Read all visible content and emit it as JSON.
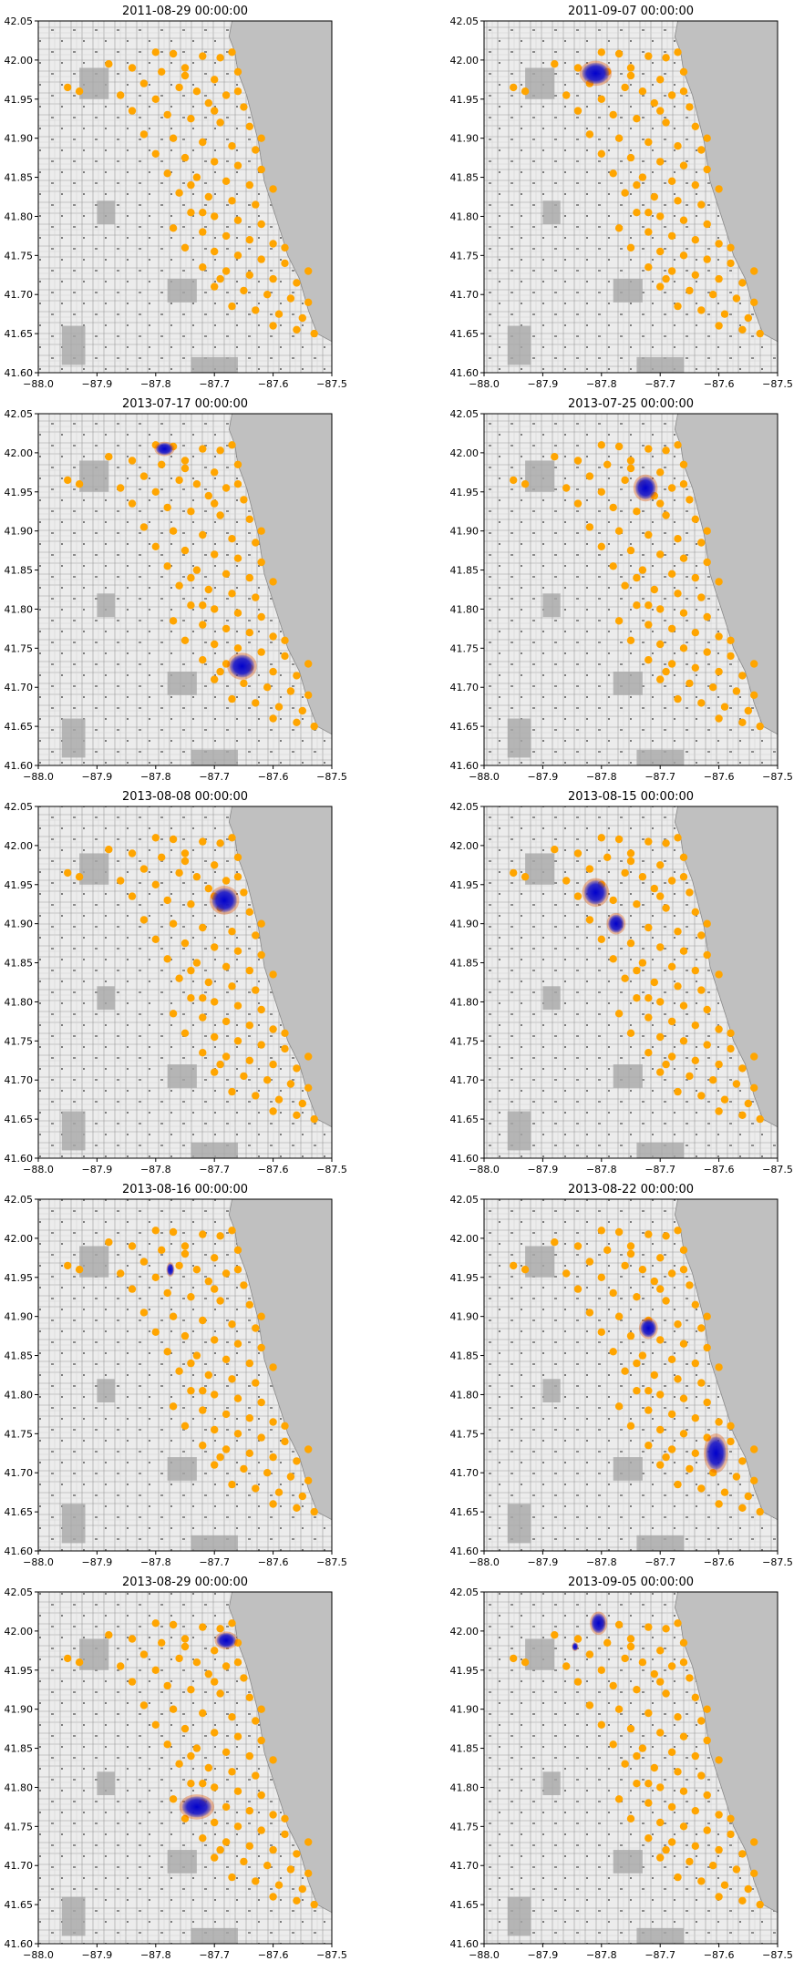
{
  "figure": {
    "background": "#ffffff"
  },
  "chart_data": [
    {
      "type": "scatter",
      "title": "2011-08-29 00:00:00",
      "xlim": [
        -88.0,
        -87.5
      ],
      "ylim": [
        41.6,
        42.05
      ],
      "xticks": [
        "−88.0",
        "−87.9",
        "−87.8",
        "−87.7",
        "−87.6",
        "−87.5"
      ],
      "yticks": [
        "41.60",
        "41.65",
        "41.70",
        "41.75",
        "41.80",
        "41.85",
        "41.90",
        "41.95",
        "42.00",
        "42.05"
      ],
      "heat_clusters": []
    },
    {
      "type": "scatter",
      "title": "2011-09-07 00:00:00",
      "xlim": [
        -88.0,
        -87.5
      ],
      "ylim": [
        41.6,
        42.05
      ],
      "xticks": [
        "−88.0",
        "−87.9",
        "−87.8",
        "−87.7",
        "−87.6",
        "−87.5"
      ],
      "yticks": [
        "41.60",
        "41.65",
        "41.70",
        "41.75",
        "41.80",
        "41.85",
        "41.90",
        "41.95",
        "42.00",
        "42.05"
      ],
      "heat_clusters": [
        {
          "x": -87.81,
          "y": 41.983,
          "rx": 0.024,
          "ry": 0.014
        }
      ]
    },
    {
      "type": "scatter",
      "title": "2013-07-17 00:00:00",
      "xlim": [
        -88.0,
        -87.5
      ],
      "ylim": [
        41.6,
        42.05
      ],
      "xticks": [
        "−88.0",
        "−87.9",
        "−87.8",
        "−87.7",
        "−87.6",
        "−87.5"
      ],
      "yticks": [
        "41.60",
        "41.65",
        "41.70",
        "41.75",
        "41.80",
        "41.85",
        "41.90",
        "41.95",
        "42.00",
        "42.05"
      ],
      "heat_clusters": [
        {
          "x": -87.785,
          "y": 42.005,
          "rx": 0.015,
          "ry": 0.008
        },
        {
          "x": -87.653,
          "y": 41.727,
          "rx": 0.022,
          "ry": 0.015
        }
      ]
    },
    {
      "type": "scatter",
      "title": "2013-07-25 00:00:00",
      "xlim": [
        -88.0,
        -87.5
      ],
      "ylim": [
        41.6,
        42.05
      ],
      "xticks": [
        "−88.0",
        "−87.9",
        "−87.8",
        "−87.7",
        "−87.6",
        "−87.5"
      ],
      "yticks": [
        "41.60",
        "41.65",
        "41.70",
        "41.75",
        "41.80",
        "41.85",
        "41.90",
        "41.95",
        "42.00",
        "42.05"
      ],
      "heat_clusters": [
        {
          "x": -87.725,
          "y": 41.955,
          "rx": 0.018,
          "ry": 0.015
        }
      ]
    },
    {
      "type": "scatter",
      "title": "2013-08-08 00:00:00",
      "xlim": [
        -88.0,
        -87.5
      ],
      "ylim": [
        41.6,
        42.05
      ],
      "xticks": [
        "−88.0",
        "−87.9",
        "−87.8",
        "−87.7",
        "−87.6",
        "−87.5"
      ],
      "yticks": [
        "41.60",
        "41.65",
        "41.70",
        "41.75",
        "41.80",
        "41.85",
        "41.90",
        "41.95",
        "42.00",
        "42.05"
      ],
      "heat_clusters": [
        {
          "x": -87.683,
          "y": 41.93,
          "rx": 0.022,
          "ry": 0.016
        }
      ]
    },
    {
      "type": "scatter",
      "title": "2013-08-15 00:00:00",
      "xlim": [
        -88.0,
        -87.5
      ],
      "ylim": [
        41.6,
        42.05
      ],
      "xticks": [
        "−88.0",
        "−87.9",
        "−87.8",
        "−87.7",
        "−87.6",
        "−87.5"
      ],
      "yticks": [
        "41.60",
        "41.65",
        "41.70",
        "41.75",
        "41.80",
        "41.85",
        "41.90",
        "41.95",
        "42.00",
        "42.05"
      ],
      "heat_clusters": [
        {
          "x": -87.81,
          "y": 41.94,
          "rx": 0.02,
          "ry": 0.016
        },
        {
          "x": -87.775,
          "y": 41.9,
          "rx": 0.014,
          "ry": 0.012
        }
      ]
    },
    {
      "type": "scatter",
      "title": "2013-08-16 00:00:00",
      "xlim": [
        -88.0,
        -87.5
      ],
      "ylim": [
        41.6,
        42.05
      ],
      "xticks": [
        "−88.0",
        "−87.9",
        "−87.8",
        "−87.7",
        "−87.6",
        "−87.5"
      ],
      "yticks": [
        "41.60",
        "41.65",
        "41.70",
        "41.75",
        "41.80",
        "41.85",
        "41.90",
        "41.95",
        "42.00",
        "42.05"
      ],
      "heat_clusters": [
        {
          "x": -87.775,
          "y": 41.96,
          "rx": 0.006,
          "ry": 0.008
        }
      ]
    },
    {
      "type": "scatter",
      "title": "2013-08-22 00:00:00",
      "xlim": [
        -88.0,
        -87.5
      ],
      "ylim": [
        41.6,
        42.05
      ],
      "xticks": [
        "−88.0",
        "−87.9",
        "−87.8",
        "−87.7",
        "−87.6",
        "−87.5"
      ],
      "yticks": [
        "41.60",
        "41.65",
        "41.70",
        "41.75",
        "41.80",
        "41.85",
        "41.90",
        "41.95",
        "42.00",
        "42.05"
      ],
      "heat_clusters": [
        {
          "x": -87.72,
          "y": 41.885,
          "rx": 0.014,
          "ry": 0.012
        },
        {
          "x": -87.605,
          "y": 41.725,
          "rx": 0.018,
          "ry": 0.022
        }
      ]
    },
    {
      "type": "scatter",
      "title": "2013-08-29 00:00:00",
      "xlim": [
        -88.0,
        -87.5
      ],
      "ylim": [
        41.6,
        42.05
      ],
      "xticks": [
        "−88.0",
        "−87.9",
        "−87.8",
        "−87.7",
        "−87.6",
        "−87.5"
      ],
      "yticks": [
        "41.60",
        "41.65",
        "41.70",
        "41.75",
        "41.80",
        "41.85",
        "41.90",
        "41.95",
        "42.00",
        "42.05"
      ],
      "heat_clusters": [
        {
          "x": -87.68,
          "y": 41.988,
          "rx": 0.017,
          "ry": 0.01
        },
        {
          "x": -87.73,
          "y": 41.775,
          "rx": 0.026,
          "ry": 0.014
        }
      ]
    },
    {
      "type": "scatter",
      "title": "2013-09-05 00:00:00",
      "xlim": [
        -88.0,
        -87.5
      ],
      "ylim": [
        41.6,
        42.05
      ],
      "xticks": [
        "−88.0",
        "−87.9",
        "−87.8",
        "−87.7",
        "−87.6",
        "−87.5"
      ],
      "yticks": [
        "41.60",
        "41.65",
        "41.70",
        "41.75",
        "41.80",
        "41.85",
        "41.90",
        "41.95",
        "42.00",
        "42.05"
      ],
      "heat_clusters": [
        {
          "x": -87.805,
          "y": 42.01,
          "rx": 0.013,
          "ry": 0.013
        },
        {
          "x": -87.845,
          "y": 41.98,
          "rx": 0.005,
          "ry": 0.005
        }
      ]
    }
  ],
  "trap_locations": [
    [
      -87.8,
      42.01
    ],
    [
      -87.77,
      42.008
    ],
    [
      -87.72,
      42.005
    ],
    [
      -87.69,
      42.003
    ],
    [
      -87.67,
      42.01
    ],
    [
      -87.88,
      41.995
    ],
    [
      -87.84,
      41.99
    ],
    [
      -87.79,
      41.985
    ],
    [
      -87.75,
      41.98
    ],
    [
      -87.7,
      41.975
    ],
    [
      -87.66,
      41.985
    ],
    [
      -87.82,
      41.97
    ],
    [
      -87.76,
      41.965
    ],
    [
      -87.73,
      41.96
    ],
    [
      -87.68,
      41.955
    ],
    [
      -87.93,
      41.96
    ],
    [
      -87.86,
      41.955
    ],
    [
      -87.8,
      41.95
    ],
    [
      -87.71,
      41.945
    ],
    [
      -87.65,
      41.94
    ],
    [
      -87.84,
      41.935
    ],
    [
      -87.78,
      41.93
    ],
    [
      -87.74,
      41.925
    ],
    [
      -87.69,
      41.92
    ],
    [
      -87.64,
      41.915
    ],
    [
      -87.82,
      41.905
    ],
    [
      -87.77,
      41.9
    ],
    [
      -87.72,
      41.895
    ],
    [
      -87.67,
      41.89
    ],
    [
      -87.63,
      41.885
    ],
    [
      -87.8,
      41.88
    ],
    [
      -87.75,
      41.875
    ],
    [
      -87.7,
      41.87
    ],
    [
      -87.66,
      41.865
    ],
    [
      -87.62,
      41.86
    ],
    [
      -87.78,
      41.855
    ],
    [
      -87.73,
      41.85
    ],
    [
      -87.68,
      41.845
    ],
    [
      -87.64,
      41.84
    ],
    [
      -87.6,
      41.835
    ],
    [
      -87.76,
      41.83
    ],
    [
      -87.71,
      41.825
    ],
    [
      -87.67,
      41.82
    ],
    [
      -87.63,
      41.815
    ],
    [
      -87.74,
      41.805
    ],
    [
      -87.7,
      41.8
    ],
    [
      -87.66,
      41.795
    ],
    [
      -87.62,
      41.79
    ],
    [
      -87.77,
      41.785
    ],
    [
      -87.72,
      41.78
    ],
    [
      -87.68,
      41.775
    ],
    [
      -87.64,
      41.77
    ],
    [
      -87.6,
      41.765
    ],
    [
      -87.75,
      41.76
    ],
    [
      -87.7,
      41.755
    ],
    [
      -87.66,
      41.75
    ],
    [
      -87.62,
      41.745
    ],
    [
      -87.58,
      41.74
    ],
    [
      -87.72,
      41.735
    ],
    [
      -87.68,
      41.73
    ],
    [
      -87.64,
      41.725
    ],
    [
      -87.6,
      41.72
    ],
    [
      -87.56,
      41.715
    ],
    [
      -87.7,
      41.71
    ],
    [
      -87.65,
      41.705
    ],
    [
      -87.61,
      41.7
    ],
    [
      -87.57,
      41.695
    ],
    [
      -87.54,
      41.69
    ],
    [
      -87.67,
      41.685
    ],
    [
      -87.63,
      41.68
    ],
    [
      -87.59,
      41.675
    ],
    [
      -87.55,
      41.67
    ],
    [
      -87.6,
      41.66
    ],
    [
      -87.56,
      41.655
    ],
    [
      -87.53,
      41.65
    ],
    [
      -87.75,
      41.99
    ],
    [
      -87.7,
      41.935
    ],
    [
      -87.62,
      41.9
    ],
    [
      -87.74,
      41.84
    ],
    [
      -87.58,
      41.76
    ],
    [
      -87.95,
      41.965
    ],
    [
      -87.72,
      41.805
    ],
    [
      -87.69,
      41.72
    ],
    [
      -87.54,
      41.73
    ],
    [
      -87.66,
      41.96
    ]
  ],
  "colors": {
    "axes_background": "#c0c0c0",
    "map_land": "#ececec",
    "trap_point": "#ffa500",
    "heat_core": "#0000cc",
    "heat_edge": "#e05000"
  }
}
